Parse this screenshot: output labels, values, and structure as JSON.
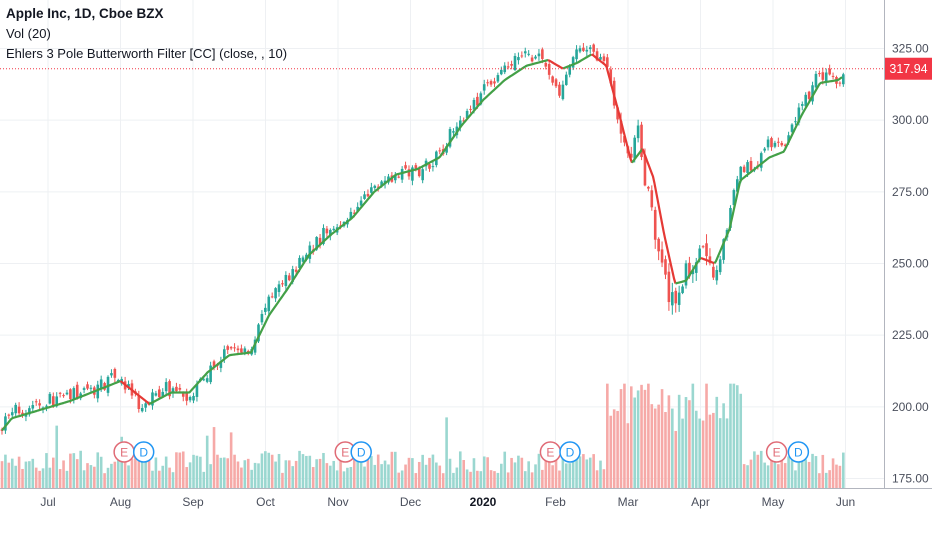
{
  "legend": {
    "symbol_line": "Apple Inc, 1D, Cboe BZX",
    "volume_line": "Vol (20)",
    "filter_line": "Ehlers 3 Pole Butterworth Filter [CC] (close, , 10)"
  },
  "price_label": {
    "value": "317.94",
    "color": "#f23645"
  },
  "colors": {
    "up": "#26a69a",
    "down": "#ef5350",
    "filter_up": "#43a047",
    "filter_down": "#e53935",
    "grid": "#eef0f3",
    "vol_up": "#9ad7d0",
    "vol_down": "#f6a9a7",
    "earnings": "#e06b76",
    "dividend": "#2196f3"
  },
  "events": [
    {
      "type": "earnings",
      "letter": "E",
      "month_index": 1.05
    },
    {
      "type": "dividend",
      "letter": "D",
      "month_index": 1.32
    },
    {
      "type": "earnings",
      "letter": "E",
      "month_index": 4.1
    },
    {
      "type": "dividend",
      "letter": "D",
      "month_index": 4.32
    },
    {
      "type": "earnings",
      "letter": "E",
      "month_index": 6.93
    },
    {
      "type": "dividend",
      "letter": "D",
      "month_index": 7.2
    },
    {
      "type": "earnings",
      "letter": "E",
      "month_index": 10.05
    },
    {
      "type": "dividend",
      "letter": "D",
      "month_index": 10.35
    }
  ],
  "chart_data": {
    "type": "candlestick",
    "title": "Apple Inc, 1D, Cboe BZX",
    "x_tick_labels": [
      "Jul",
      "Aug",
      "Sep",
      "Oct",
      "Nov",
      "Dec",
      "2020",
      "Feb",
      "Mar",
      "Apr",
      "May",
      "Jun"
    ],
    "y_tick_labels": [
      "175.00",
      "200.00",
      "225.00",
      "250.00",
      "275.00",
      "300.00",
      "325.00"
    ],
    "y_ticks": [
      175,
      200,
      225,
      250,
      275,
      300,
      325
    ],
    "ylim": [
      172,
      330
    ],
    "last_price": 317.94,
    "close_path": {
      "month_index": [
        -0.85,
        -0.55,
        -0.2,
        0.2,
        0.6,
        0.95,
        1.1,
        1.3,
        1.6,
        1.9,
        2.2,
        2.5,
        2.8,
        3.0,
        3.3,
        3.6,
        3.9,
        4.2,
        4.5,
        4.8,
        5.1,
        5.4,
        5.7,
        6.0,
        6.3,
        6.6,
        6.85,
        7.05,
        7.25,
        7.5,
        7.7,
        7.85,
        8.0,
        8.15,
        8.3,
        8.5,
        8.65,
        8.8,
        9.0,
        9.2,
        9.4,
        9.55,
        9.75,
        9.95,
        10.15,
        10.4,
        10.65,
        10.9,
        11.05
      ],
      "values": [
        182,
        197,
        201,
        203,
        206,
        211,
        206,
        199,
        207,
        204,
        211,
        220,
        219,
        236,
        245,
        255,
        262,
        267,
        277,
        282,
        282,
        289,
        301,
        310,
        318,
        323,
        320,
        308,
        323,
        325,
        321,
        299,
        285,
        295,
        270,
        243,
        236,
        248,
        256,
        244,
        267,
        284,
        283,
        293,
        289,
        306,
        316,
        314,
        318
      ]
    },
    "filter_path": {
      "month_index": [
        -0.85,
        -0.5,
        -0.1,
        0.3,
        0.7,
        1.0,
        1.15,
        1.4,
        1.7,
        1.95,
        2.2,
        2.5,
        2.8,
        3.05,
        3.3,
        3.6,
        3.9,
        4.2,
        4.5,
        4.8,
        5.1,
        5.4,
        5.7,
        6.0,
        6.3,
        6.6,
        6.9,
        7.1,
        7.3,
        7.5,
        7.7,
        7.9,
        8.05,
        8.2,
        8.35,
        8.5,
        8.65,
        8.8,
        9.0,
        9.2,
        9.4,
        9.55,
        9.75,
        9.95,
        10.15,
        10.4,
        10.65,
        10.9,
        11.05
      ],
      "values": [
        185,
        196,
        199,
        202,
        206,
        209,
        206,
        201,
        205,
        205,
        212,
        218,
        219,
        232,
        241,
        253,
        260,
        266,
        275,
        281,
        283,
        287,
        298,
        307,
        314,
        319,
        321,
        318,
        320,
        323,
        319,
        300,
        285,
        290,
        280,
        260,
        243,
        244,
        252,
        250,
        262,
        279,
        283,
        287,
        289,
        302,
        313,
        314,
        317
      ]
    },
    "volume_range": [
      173,
      210
    ]
  }
}
